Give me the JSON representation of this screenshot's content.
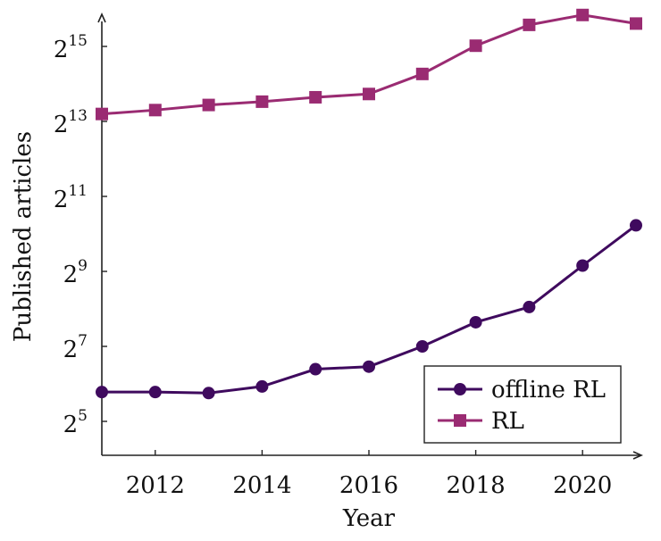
{
  "chart_data": {
    "type": "line",
    "xlabel": "Year",
    "ylabel": "Published articles",
    "x": [
      2011,
      2012,
      2013,
      2014,
      2015,
      2016,
      2017,
      2018,
      2019,
      2020,
      2021
    ],
    "xlim": [
      2011,
      2021.2
    ],
    "xticks": [
      2012,
      2014,
      2016,
      2018,
      2020
    ],
    "y_scale": "log2",
    "ylim_exponent": [
      4,
      16
    ],
    "yticks": [
      {
        "base": "2",
        "exp": "5",
        "value": 32
      },
      {
        "base": "2",
        "exp": "7",
        "value": 128
      },
      {
        "base": "2",
        "exp": "9",
        "value": 512
      },
      {
        "base": "2",
        "exp": "11",
        "value": 2048
      },
      {
        "base": "2",
        "exp": "13",
        "value": 8192
      },
      {
        "base": "2",
        "exp": "15",
        "value": 32768
      }
    ],
    "series": [
      {
        "name": "offline RL",
        "marker": "circle",
        "color": "#3f0a5e",
        "values": [
          55,
          55,
          54,
          61,
          84,
          88,
          128,
          200,
          265,
          570,
          1200
        ]
      },
      {
        "name": "RL",
        "marker": "square",
        "color": "#9a2b72",
        "values": [
          9400,
          10100,
          11100,
          11800,
          12800,
          13600,
          19700,
          33200,
          48800,
          58600,
          50000
        ]
      }
    ],
    "legend": {
      "placement": "bottom-right"
    },
    "grid": false
  }
}
